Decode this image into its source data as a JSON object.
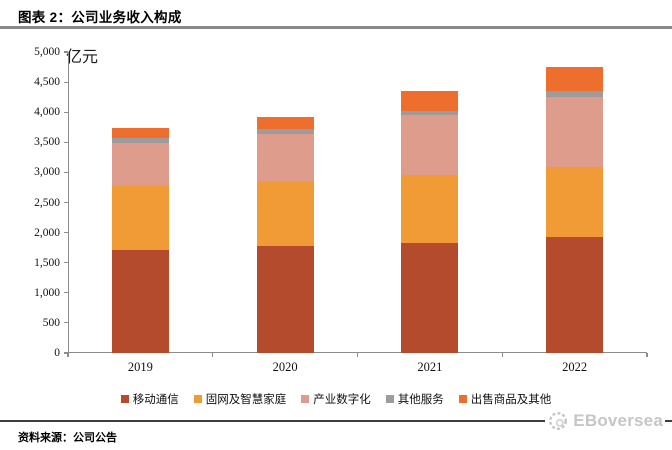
{
  "header": {
    "title": "图表 2：公司业务收入构成"
  },
  "chart_data": {
    "type": "bar",
    "subtype": "stacked-vertical",
    "title": "公司业务收入构成",
    "unit_label": "亿元",
    "xlabel": "",
    "ylabel": "亿元",
    "categories": [
      "2019",
      "2020",
      "2021",
      "2022"
    ],
    "series": [
      {
        "name": "移动通信",
        "color": "#B54B2D",
        "values": [
          1705,
          1775,
          1820,
          1925
        ]
      },
      {
        "name": "固网及智慧家庭",
        "color": "#F19B37",
        "values": [
          1065,
          1080,
          1135,
          1165
        ]
      },
      {
        "name": "产业数字化",
        "color": "#DE9C8C",
        "values": [
          720,
          790,
          995,
          1160
        ]
      },
      {
        "name": "其他服务",
        "color": "#9D9B9B",
        "values": [
          85,
          70,
          70,
          95
        ]
      },
      {
        "name": "出售商品及其他",
        "color": "#EE6E2D",
        "values": [
          155,
          210,
          330,
          405
        ]
      }
    ],
    "totals": [
      3730,
      3925,
      4350,
      4750
    ],
    "ylim": [
      0,
      5000
    ],
    "ytick_step": 500,
    "yticks": [
      "0",
      "500",
      "1,000",
      "1,500",
      "2,000",
      "2,500",
      "3,000",
      "3,500",
      "4,000",
      "4,500",
      "5,000"
    ],
    "grid": false,
    "legend_position": "bottom"
  },
  "footer": {
    "source": "资料来源：公司公告",
    "logo_text": "EBoversea"
  }
}
